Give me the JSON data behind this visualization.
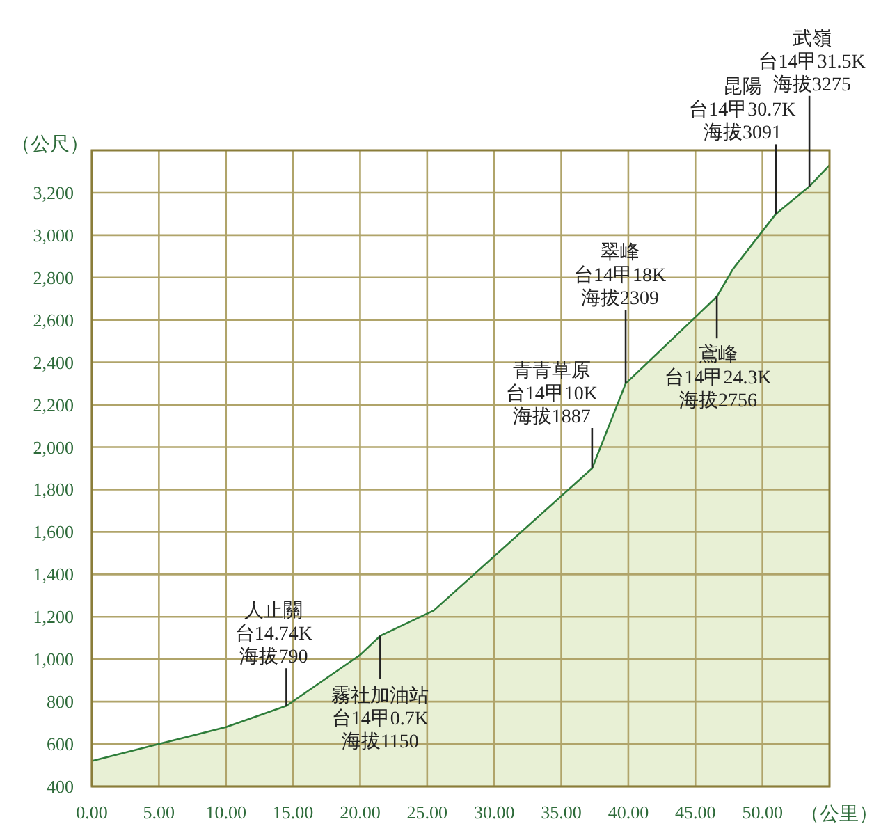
{
  "chart_data": {
    "type": "area",
    "xlabel": "（公里）",
    "ylabel": "（公尺）",
    "x": [
      0,
      5,
      10,
      14.5,
      20,
      21.5,
      25.5,
      37.3,
      39.8,
      46.6,
      47.8,
      51,
      53.5,
      55
    ],
    "series": [
      {
        "color": "#2e7d3a",
        "values": [
          520,
          600,
          680,
          780,
          1020,
          1110,
          1230,
          1900,
          2300,
          2710,
          2840,
          3100,
          3230,
          3330
        ]
      }
    ],
    "xlim": [
      0,
      55
    ],
    "ylim": [
      400,
      3400
    ],
    "xticks": [
      {
        "value": 0,
        "label": "0.00"
      },
      {
        "value": 5,
        "label": "5.00"
      },
      {
        "value": 10,
        "label": "10.00"
      },
      {
        "value": 15,
        "label": "15.00"
      },
      {
        "value": 20,
        "label": "20.00"
      },
      {
        "value": 25,
        "label": "25.00"
      },
      {
        "value": 30,
        "label": "30.00"
      },
      {
        "value": 35,
        "label": "35.00"
      },
      {
        "value": 40,
        "label": "40.00"
      },
      {
        "value": 45,
        "label": "45.00"
      },
      {
        "value": 50,
        "label": "50.00"
      }
    ],
    "yticks": [
      400,
      600,
      800,
      {
        "value": 1000,
        "label": "1,000"
      },
      {
        "value": 1200,
        "label": "1,200"
      },
      {
        "value": 1400,
        "label": "1,400"
      },
      {
        "value": 1600,
        "label": "1,600"
      },
      {
        "value": 1800,
        "label": "1,800"
      },
      {
        "value": 2000,
        "label": "2,000"
      },
      {
        "value": 2200,
        "label": "2,200"
      },
      {
        "value": 2400,
        "label": "2,400"
      },
      {
        "value": 2600,
        "label": "2,600"
      },
      {
        "value": 2800,
        "label": "2,800"
      },
      {
        "value": 3000,
        "label": "3,000"
      },
      {
        "value": 3200,
        "label": "3,200"
      }
    ],
    "grid": true,
    "annotations": [
      "人止關",
      "台14.74K",
      {
        "text": "海拔790",
        "x": 14.5,
        "y": 780
      },
      {
        "text": "霧社加油站",
        "x": 21.5,
        "y": 1110
      },
      "台14甲0.7K",
      "海拔1150",
      "青青草原",
      "台14甲10K",
      {
        "text": "海拔1887",
        "x": 37.3,
        "y": 1900
      },
      "翠峰",
      "台14甲18K",
      {
        "text": "海拔2309",
        "x": 39.8,
        "y": 2300
      },
      {
        "text": "鳶峰",
        "x": 46.6,
        "y": 2710
      },
      "台14甲24.3K",
      "海拔2756",
      "昆陽",
      "台14甲30.7K",
      {
        "text": "海拔3091",
        "x": 51,
        "y": 3100
      },
      "武嶺",
      "台14甲31.5K",
      {
        "text": "海拔3275",
        "x": 53.5,
        "y": 3230
      }
    ]
  }
}
